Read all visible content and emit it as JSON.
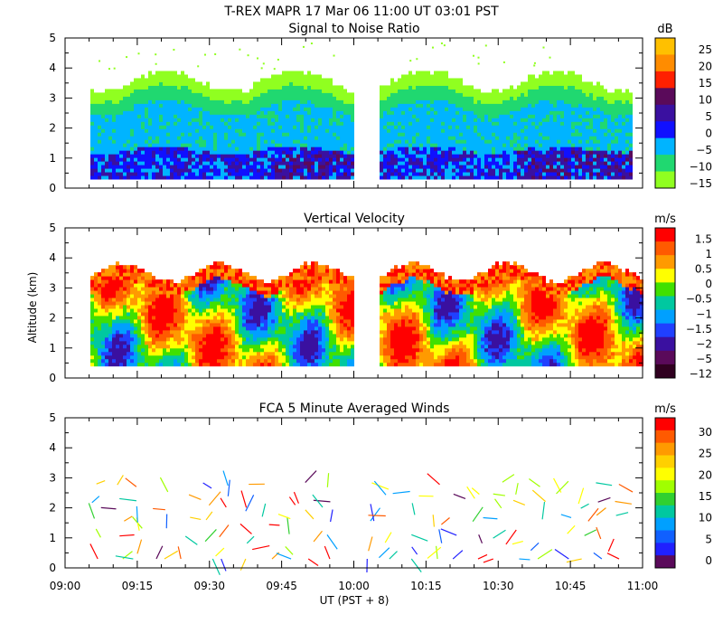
{
  "header": {
    "line1": "T-REX   MAPR 17 Mar 06   11:00 UT   03:01   PST"
  },
  "chart_data": [
    {
      "type": "heatmap",
      "title": "Signal to Noise Ratio",
      "unit": "dB",
      "xlabel": "",
      "ylabel": "",
      "xlim": [
        0,
        120
      ],
      "ylim": [
        0,
        5
      ],
      "yticks": [
        "0",
        "1",
        "2",
        "3",
        "4",
        "5"
      ],
      "data_gap_minutes": [
        60,
        63
      ],
      "colorbar": {
        "labels": [
          "25",
          "20",
          "15",
          "10",
          "5",
          "0",
          "−5",
          "−10",
          "−15"
        ],
        "colors": [
          "#ffc000",
          "#ff8c00",
          "#ff2000",
          "#5a0a5a",
          "#3a10a0",
          "#1010ff",
          "#00b4ff",
          "#20d870",
          "#90ff20"
        ]
      },
      "description_levels": {
        "top_altitude_km": 3.6,
        "bottom_altitude_km": 0.3
      }
    },
    {
      "type": "heatmap",
      "title": "Vertical Velocity",
      "unit": "m/s",
      "xlabel": "",
      "ylabel": "Altitude (km)",
      "xlim": [
        0,
        120
      ],
      "ylim": [
        0,
        5
      ],
      "yticks": [
        "0",
        "1",
        "2",
        "3",
        "4",
        "5"
      ],
      "colorbar": {
        "labels": [
          "1.5",
          "1",
          "0.5",
          "0",
          "−0.5",
          "−1",
          "−1.5",
          "−2",
          "−5",
          "−12"
        ],
        "colors": [
          "#ff0000",
          "#ff5a00",
          "#ff9a00",
          "#ffff00",
          "#40e000",
          "#00c8a0",
          "#00a0ff",
          "#2040ff",
          "#3a10a0",
          "#5a0a5a",
          "#300020"
        ]
      }
    },
    {
      "type": "scatter",
      "title": "FCA 5 Minute Averaged Winds",
      "unit": "m/s",
      "xlabel": "UT  (PST + 8)",
      "ylabel": "",
      "xlim": [
        0,
        120
      ],
      "ylim": [
        0,
        5
      ],
      "yticks": [
        "0",
        "1",
        "2",
        "3",
        "4",
        "5"
      ],
      "xticks": [
        "09:00",
        "09:15",
        "09:30",
        "09:45",
        "10:00",
        "10:15",
        "10:30",
        "10:45",
        "11:00"
      ],
      "colorbar": {
        "labels": [
          "30",
          "25",
          "20",
          "15",
          "10",
          "5",
          "0"
        ],
        "colors": [
          "#ff0000",
          "#ff5a00",
          "#ff9a00",
          "#ffd000",
          "#ffff00",
          "#a0ff00",
          "#30d030",
          "#00c8a0",
          "#00a0ff",
          "#1060ff",
          "#2020ff",
          "#5a0a5a"
        ]
      }
    }
  ]
}
